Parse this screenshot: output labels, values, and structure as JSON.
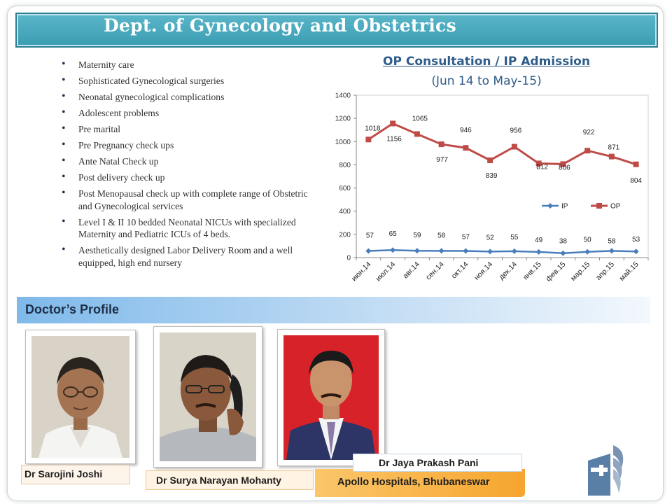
{
  "header": {
    "title": "Dept. of Gynecology and Obstetrics"
  },
  "services": [
    "Maternity care",
    "Sophisticated Gynecological surgeries",
    "Neonatal gynecological complications",
    "Adolescent problems",
    "Pre marital",
    "Pre  Pregnancy check ups",
    "Ante Natal Check up",
    "Post delivery check up",
    "Post Menopausal check up with complete range of Obstetric and Gynecological services",
    "Level I & II 10 bedded Neonatal NICUs with specialized Maternity and Pediatric ICUs of 4 beds.",
    "Aesthetically designed Labor Delivery Room and a well equipped, high end nursery"
  ],
  "chart_header": {
    "title": "OP Consultation / IP Admission",
    "subtitle": "(Jun 14 to May-15)"
  },
  "chart_data": {
    "type": "line",
    "categories": [
      "июн.14",
      "июл.14",
      "авг.14",
      "сен.14",
      "окт.14",
      "ноя.14",
      "дек.14",
      "янв.15",
      "фев.15",
      "мар.15",
      "апр.15",
      "май.15"
    ],
    "series": [
      {
        "name": "IP",
        "color": "#4a7ebb",
        "values": [
          57,
          65,
          59,
          58,
          57,
          52,
          55,
          49,
          38,
          50,
          58,
          53
        ]
      },
      {
        "name": "OP",
        "color": "#be4b48",
        "values": [
          1018,
          1156,
          1065,
          977,
          946,
          839,
          956,
          812,
          806,
          922,
          871,
          804
        ]
      }
    ],
    "y_ticks": [
      "0",
      "200",
      "400",
      "600",
      "800",
      "1000",
      "1200",
      "1400"
    ],
    "ylim": [
      0,
      1400
    ],
    "grid": false,
    "legend": "center-right"
  },
  "profile": {
    "title": "Doctor’s Profile",
    "doctors": [
      {
        "name": "Dr Sarojini Joshi"
      },
      {
        "name": "Dr Surya Narayan Mohanty"
      },
      {
        "name": "Dr  Jaya Prakash Pani"
      }
    ]
  },
  "footer": {
    "hospital": "Apollo Hospitals, Bhubaneswar"
  }
}
